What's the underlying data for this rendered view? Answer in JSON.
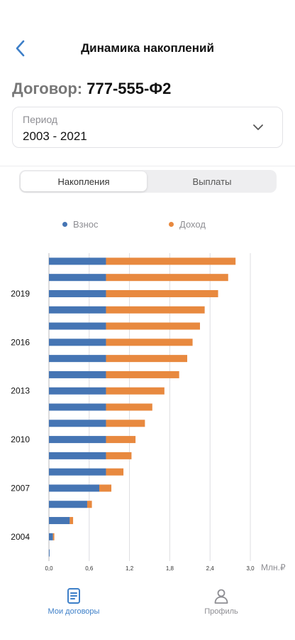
{
  "header": {
    "title": "Динамика накоплений"
  },
  "contract": {
    "label": "Договор:",
    "number": "777-555-Ф2"
  },
  "period": {
    "label": "Период",
    "value": "2003 - 2021"
  },
  "tabs": [
    {
      "label": "Накопления",
      "active": true
    },
    {
      "label": "Выплаты",
      "active": false
    }
  ],
  "legend": [
    {
      "name": "Взнос",
      "color": "#4575b4"
    },
    {
      "name": "Доход",
      "color": "#e8893f"
    }
  ],
  "chart_data": {
    "type": "bar",
    "orientation": "horizontal",
    "stacked": true,
    "categories": [
      "2021",
      "2020",
      "2019",
      "2018",
      "2017",
      "2016",
      "2015",
      "2014",
      "2013",
      "2012",
      "2011",
      "2010",
      "2009",
      "2008",
      "2007",
      "2006",
      "2005",
      "2004",
      "2003"
    ],
    "category_labels": [
      "",
      "",
      "2019",
      "",
      "",
      "2016",
      "",
      "",
      "2013",
      "",
      "",
      "2010",
      "",
      "",
      "2007",
      "",
      "",
      "2004",
      ""
    ],
    "series": [
      {
        "name": "Взнос",
        "color": "#4575b4",
        "values": [
          0.85,
          0.85,
          0.85,
          0.85,
          0.85,
          0.85,
          0.85,
          0.85,
          0.85,
          0.85,
          0.85,
          0.85,
          0.85,
          0.85,
          0.75,
          0.57,
          0.31,
          0.06,
          0.01
        ]
      },
      {
        "name": "Доход",
        "color": "#e8893f",
        "values": [
          1.93,
          1.82,
          1.67,
          1.47,
          1.4,
          1.29,
          1.21,
          1.09,
          0.87,
          0.69,
          0.58,
          0.44,
          0.38,
          0.26,
          0.18,
          0.07,
          0.05,
          0.02,
          0.0
        ]
      }
    ],
    "x_ticks": [
      "0,0",
      "0,6",
      "1,2",
      "1,8",
      "2,4",
      "3,0"
    ],
    "xlim": [
      0,
      3.0
    ],
    "unit": "Млн.₽",
    "grid": true
  },
  "nav": [
    {
      "label": "Мои договоры",
      "icon": "document-icon",
      "active": true
    },
    {
      "label": "Профиль",
      "icon": "person-icon",
      "active": false
    }
  ]
}
